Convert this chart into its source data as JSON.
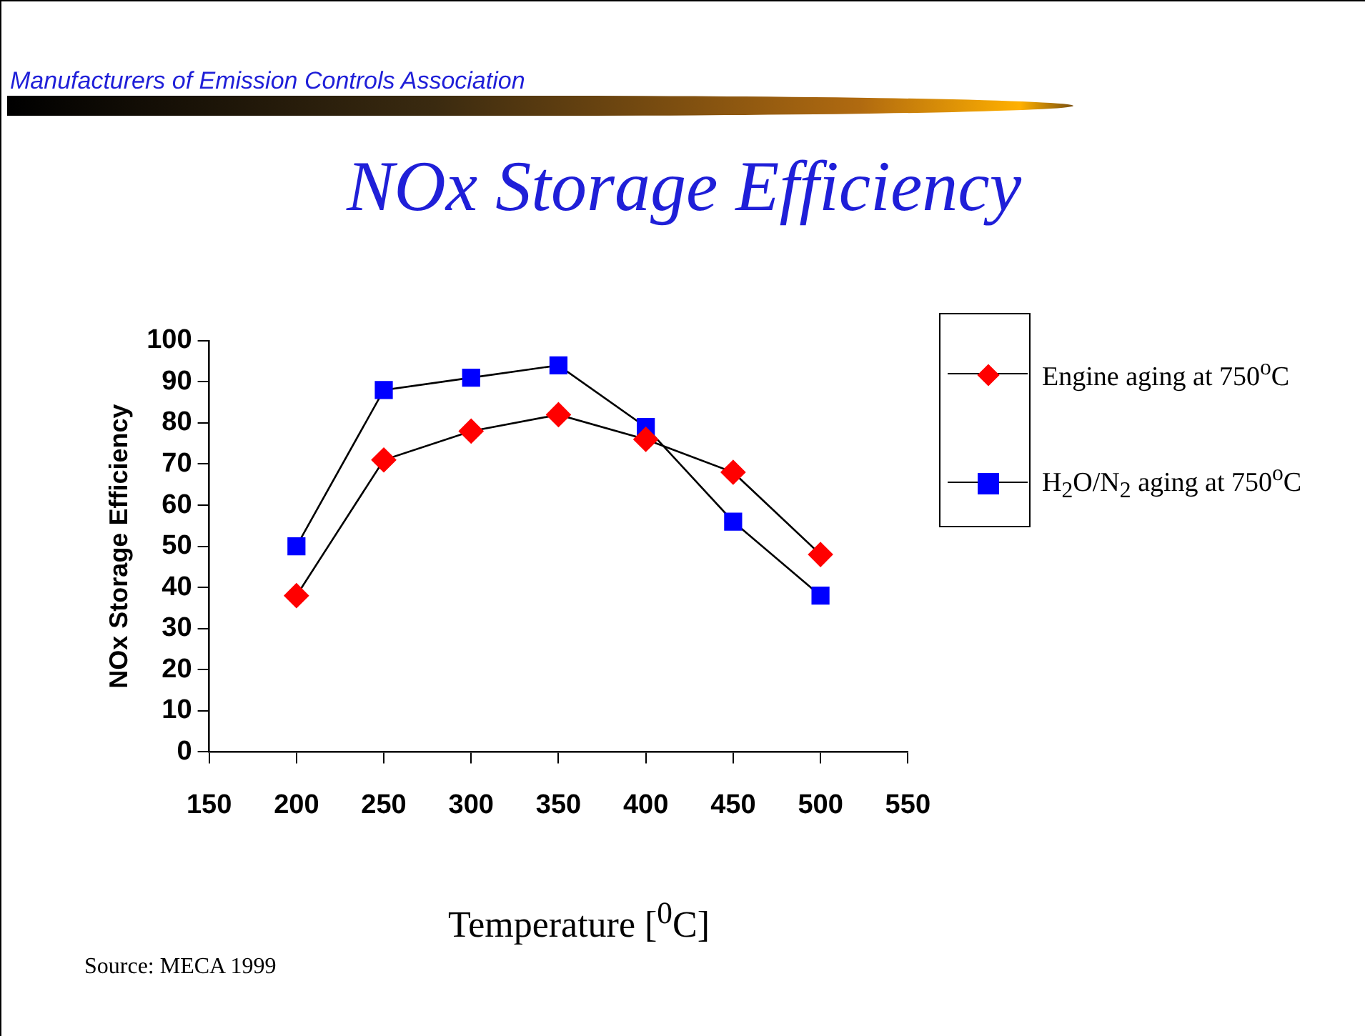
{
  "chart_data": {
    "type": "line",
    "title": "NOx Storage Efficiency",
    "xlabel": "Temperature [$^{0}$C]",
    "ylabel": "NOx Storage Efficiency",
    "annotations": [
      "Manufacturers of Emission Controls Association",
      "Source: MECA 1999"
    ],
    "x": [
      200,
      250,
      300,
      350,
      400,
      450,
      500
    ],
    "series": [
      {
        "name": "Engine aging at 750$^{o}$C",
        "color": "#ff0000",
        "marker": "diamond",
        "values": [
          38,
          71,
          78,
          82,
          76,
          68,
          48
        ]
      },
      {
        "name": "H$_{2}$O/N$_{2}$ aging at 750$^{o}$C",
        "color": "#0000ff",
        "marker": "square",
        "values": [
          50,
          88,
          91,
          94,
          79,
          56,
          38
        ]
      }
    ],
    "xlim": [
      150,
      550
    ],
    "xticks": [
      150,
      200,
      250,
      300,
      350,
      400,
      450,
      500,
      550
    ],
    "ylim": [
      0,
      100
    ],
    "yticks": [
      0,
      10,
      20,
      30,
      40,
      50,
      60,
      70,
      80,
      90,
      100
    ],
    "grid": false,
    "legend": "right",
    "line_style": "solid"
  }
}
